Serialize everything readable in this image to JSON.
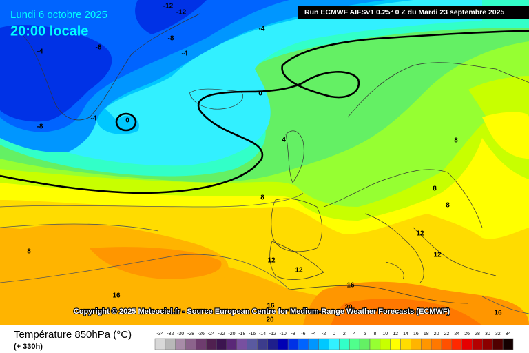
{
  "header": {
    "date": "Lundi 6 octobre 2025",
    "time": "20:00 locale",
    "run": "Run ECMWF AIFSv1 0.25° 0 Z du Mardi 23 septembre 2025"
  },
  "map": {
    "contour_labels": [
      -12,
      -12,
      -4,
      -8,
      -4,
      -8,
      -4,
      -4,
      0,
      0,
      -8,
      4,
      8,
      8,
      8,
      8,
      8,
      12,
      12,
      12,
      12,
      16,
      16,
      16,
      16,
      20,
      20
    ],
    "copyright": "Copyright © 2025 Meteociel.fr - Source European Centre for Medium-Range Weather Forecasts (ECMWF)"
  },
  "legend": {
    "title": "Température 850hPa (°C)",
    "lead": "(+ 330h)",
    "ticks": [
      -34,
      -32,
      -30,
      -28,
      -26,
      -24,
      -22,
      -20,
      -18,
      -16,
      -14,
      -12,
      -10,
      -8,
      -6,
      -4,
      -2,
      0,
      2,
      4,
      6,
      8,
      10,
      12,
      14,
      16,
      18,
      20,
      22,
      24,
      26,
      28,
      30,
      32,
      34
    ],
    "colors": [
      "#d8d8d8",
      "#b8b8b8",
      "#a88ca8",
      "#8c648c",
      "#6e3c6e",
      "#502050",
      "#3c1450",
      "#5a2878",
      "#7850a0",
      "#5a5aa0",
      "#3c3c8c",
      "#1e1e8c",
      "#0000b4",
      "#0032e6",
      "#0064ff",
      "#0096ff",
      "#00c8ff",
      "#32f0ff",
      "#32ffc8",
      "#50ff8c",
      "#64f064",
      "#96ff32",
      "#c8ff00",
      "#ffff00",
      "#ffdc00",
      "#ffb400",
      "#ff9600",
      "#ff7800",
      "#ff5000",
      "#ff2800",
      "#e60000",
      "#b40000",
      "#8c0000",
      "#500000",
      "#140000"
    ]
  }
}
